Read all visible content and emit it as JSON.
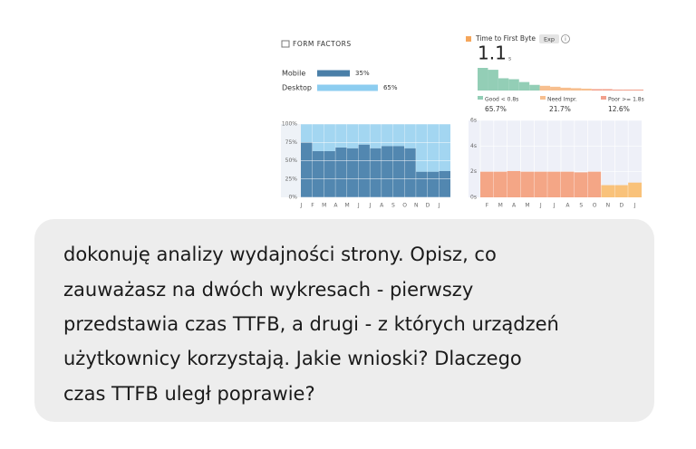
{
  "chart_data": [
    {
      "type": "hbar",
      "title": "FORM FACTORS",
      "categories": [
        "Mobile",
        "Desktop"
      ],
      "values": [
        35,
        65
      ],
      "value_labels": [
        "35%",
        "65%"
      ],
      "colors": [
        "#4a7fa8",
        "#8ccdf0"
      ],
      "xlim": [
        0,
        100
      ]
    },
    {
      "type": "stacked-bar",
      "categories": [
        "J",
        "F",
        "M",
        "A",
        "M",
        "J",
        "J",
        "A",
        "S",
        "O",
        "N",
        "D",
        "J"
      ],
      "series": [
        {
          "color": "#5287b0",
          "values": [
            75,
            63,
            63,
            68,
            67,
            72,
            67,
            70,
            70,
            67,
            35,
            35,
            36
          ]
        },
        {
          "color": "#a3d6f1",
          "values": [
            25,
            37,
            37,
            32,
            33,
            28,
            33,
            30,
            30,
            33,
            65,
            65,
            64
          ]
        }
      ],
      "ylim": [
        0,
        100
      ],
      "yticks": [
        {
          "value": 0,
          "label": "0%"
        },
        {
          "value": 25,
          "label": "25%"
        },
        {
          "value": 50,
          "label": "50%"
        },
        {
          "value": 75,
          "label": "75%"
        },
        {
          "value": 100,
          "label": "100%"
        }
      ]
    },
    {
      "type": "distribution",
      "title": "Time to First Byte",
      "badge": "Exp",
      "info": "i",
      "value": 1.1,
      "unit": "s",
      "color": "#f5a65b",
      "values": [
        24,
        22,
        13,
        12,
        9,
        6,
        5,
        4,
        3,
        2.5,
        2,
        1.5,
        1.5,
        1,
        1,
        1
      ],
      "colors": [
        "#93ceb6",
        "#93ceb6",
        "#93ceb6",
        "#93ceb6",
        "#93ceb6",
        "#93ceb6",
        "#f7bf8f",
        "#f7bf8f",
        "#f7bf8f",
        "#f7bf8f",
        "#f7bf8f",
        "#f2a08c",
        "#f2a08c",
        "#f2a08c",
        "#f2a08c",
        "#f2a08c"
      ],
      "legend": [
        {
          "name": "Good < 0.8s",
          "value": 65.7,
          "value_label": "65.7%",
          "color": "#93ceb6"
        },
        {
          "name": "Need Impr.",
          "value": 21.7,
          "value_label": "21.7%",
          "color": "#f7bf8f"
        },
        {
          "name": "Poor >= 1.8s",
          "value": 12.6,
          "value_label": "12.6%",
          "color": "#f2a08c"
        }
      ]
    },
    {
      "type": "bar",
      "categories": [
        "F",
        "M",
        "A",
        "M",
        "J",
        "J",
        "A",
        "S",
        "O",
        "N",
        "D",
        "J"
      ],
      "values": [
        2.0,
        2.0,
        2.05,
        2.0,
        2.0,
        2.0,
        2.0,
        1.95,
        2.0,
        0.95,
        0.95,
        1.15
      ],
      "colors": [
        "#f4a686",
        "#f4a686",
        "#f4a686",
        "#f4a686",
        "#f4a686",
        "#f4a686",
        "#f4a686",
        "#f4a686",
        "#f4a686",
        "#f9c27a",
        "#f9c27a",
        "#f9c27a"
      ],
      "ylim": [
        0,
        6
      ],
      "yticks": [
        {
          "value": 0,
          "label": "0s"
        },
        {
          "value": 2,
          "label": "2s"
        },
        {
          "value": 4,
          "label": "4s"
        },
        {
          "value": 6,
          "label": "6s"
        }
      ]
    }
  ],
  "message": {
    "lines": [
      "dokonuję analizy wydajności strony. Opisz, co",
      "zauważasz na dwóch wykresach - pierwszy",
      "przedstawia czas TTFB, a drugi - z których urządzeń",
      "użytkownicy korzystają. Jakie wnioski? Dlaczego",
      "czas TTFB uległ poprawie?"
    ]
  }
}
